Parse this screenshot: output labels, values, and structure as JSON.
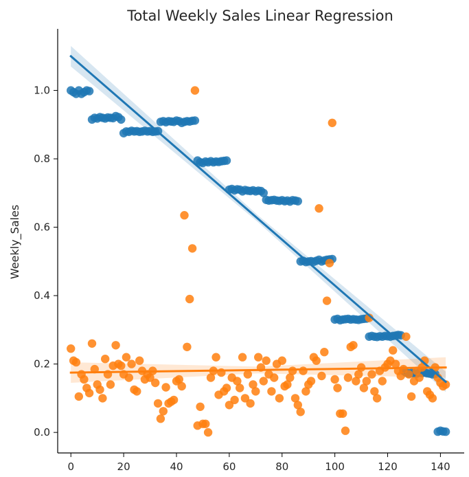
{
  "chart_data": {
    "type": "scatter",
    "title": "Total Weekly Sales Linear Regression",
    "xlabel": "",
    "ylabel": "Weekly_Sales",
    "xlim": [
      -5,
      149
    ],
    "ylim": [
      -0.06,
      1.18
    ],
    "xticks": [
      0,
      20,
      40,
      60,
      80,
      100,
      120,
      140
    ],
    "yticks": [
      0.0,
      0.2,
      0.4,
      0.6,
      0.8,
      1.0
    ],
    "ytick_labels": [
      "0.0",
      "0.2",
      "0.4",
      "0.6",
      "0.8",
      "1.0"
    ],
    "grid": false,
    "series": [
      {
        "color": "#1f77b4",
        "points": [
          [
            0,
            1.0
          ],
          [
            1,
            0.995
          ],
          [
            2,
            0.99
          ],
          [
            3,
            1.0
          ],
          [
            4,
            0.99
          ],
          [
            5,
            0.995
          ],
          [
            6,
            1.0
          ],
          [
            7,
            0.998
          ],
          [
            8,
            0.915
          ],
          [
            9,
            0.92
          ],
          [
            10,
            0.918
          ],
          [
            11,
            0.922
          ],
          [
            12,
            0.92
          ],
          [
            13,
            0.918
          ],
          [
            14,
            0.921
          ],
          [
            15,
            0.92
          ],
          [
            16,
            0.919
          ],
          [
            17,
            0.925
          ],
          [
            18,
            0.922
          ],
          [
            19,
            0.915
          ],
          [
            20,
            0.875
          ],
          [
            21,
            0.88
          ],
          [
            22,
            0.879
          ],
          [
            23,
            0.882
          ],
          [
            24,
            0.88
          ],
          [
            25,
            0.881
          ],
          [
            26,
            0.879
          ],
          [
            27,
            0.88
          ],
          [
            28,
            0.882
          ],
          [
            29,
            0.88
          ],
          [
            30,
            0.881
          ],
          [
            31,
            0.879
          ],
          [
            32,
            0.88
          ],
          [
            33,
            0.881
          ],
          [
            34,
            0.908
          ],
          [
            35,
            0.91
          ],
          [
            36,
            0.907
          ],
          [
            37,
            0.91
          ],
          [
            38,
            0.909
          ],
          [
            39,
            0.908
          ],
          [
            40,
            0.912
          ],
          [
            41,
            0.91
          ],
          [
            42,
            0.905
          ],
          [
            43,
            0.908
          ],
          [
            44,
            0.91
          ],
          [
            45,
            0.909
          ],
          [
            46,
            0.911
          ],
          [
            47,
            0.912
          ],
          [
            48,
            0.795
          ],
          [
            49,
            0.79
          ],
          [
            50,
            0.788
          ],
          [
            51,
            0.792
          ],
          [
            52,
            0.79
          ],
          [
            53,
            0.793
          ],
          [
            54,
            0.79
          ],
          [
            55,
            0.792
          ],
          [
            56,
            0.791
          ],
          [
            57,
            0.793
          ],
          [
            58,
            0.794
          ],
          [
            59,
            0.795
          ],
          [
            60,
            0.71
          ],
          [
            61,
            0.712
          ],
          [
            62,
            0.708
          ],
          [
            63,
            0.711
          ],
          [
            64,
            0.71
          ],
          [
            65,
            0.705
          ],
          [
            66,
            0.709
          ],
          [
            67,
            0.707
          ],
          [
            68,
            0.706
          ],
          [
            69,
            0.708
          ],
          [
            70,
            0.705
          ],
          [
            71,
            0.707
          ],
          [
            72,
            0.706
          ],
          [
            73,
            0.7
          ],
          [
            74,
            0.68
          ],
          [
            75,
            0.678
          ],
          [
            76,
            0.679
          ],
          [
            77,
            0.68
          ],
          [
            78,
            0.678
          ],
          [
            79,
            0.677
          ],
          [
            80,
            0.679
          ],
          [
            81,
            0.676
          ],
          [
            82,
            0.678
          ],
          [
            83,
            0.675
          ],
          [
            84,
            0.679
          ],
          [
            85,
            0.678
          ],
          [
            86,
            0.676
          ],
          [
            87,
            0.5
          ],
          [
            88,
            0.502
          ],
          [
            89,
            0.498
          ],
          [
            90,
            0.5
          ],
          [
            91,
            0.501
          ],
          [
            92,
            0.499
          ],
          [
            93,
            0.502
          ],
          [
            94,
            0.505
          ],
          [
            95,
            0.5
          ],
          [
            96,
            0.503
          ],
          [
            97,
            0.505
          ],
          [
            98,
            0.506
          ],
          [
            99,
            0.507
          ],
          [
            100,
            0.33
          ],
          [
            101,
            0.332
          ],
          [
            102,
            0.328
          ],
          [
            103,
            0.33
          ],
          [
            104,
            0.331
          ],
          [
            105,
            0.332
          ],
          [
            106,
            0.33
          ],
          [
            107,
            0.331
          ],
          [
            108,
            0.33
          ],
          [
            109,
            0.329
          ],
          [
            110,
            0.331
          ],
          [
            111,
            0.332
          ],
          [
            112,
            0.333
          ],
          [
            113,
            0.28
          ],
          [
            114,
            0.282
          ],
          [
            115,
            0.28
          ],
          [
            116,
            0.279
          ],
          [
            117,
            0.281
          ],
          [
            118,
            0.28
          ],
          [
            119,
            0.282
          ],
          [
            120,
            0.281
          ],
          [
            121,
            0.28
          ],
          [
            122,
            0.282
          ],
          [
            123,
            0.283
          ],
          [
            124,
            0.285
          ],
          [
            125,
            0.284
          ],
          [
            126,
            0.18
          ],
          [
            127,
            0.175
          ],
          [
            128,
            0.172
          ],
          [
            129,
            0.174
          ],
          [
            130,
            0.173
          ],
          [
            131,
            0.172
          ],
          [
            132,
            0.175
          ],
          [
            133,
            0.174
          ],
          [
            134,
            0.175
          ],
          [
            135,
            0.173
          ],
          [
            136,
            0.172
          ],
          [
            137,
            0.17
          ],
          [
            138,
            0.171
          ],
          [
            139,
            0.002
          ],
          [
            140,
            0.005
          ],
          [
            141,
            0.003
          ],
          [
            142,
            0.002
          ]
        ],
        "fit": [
          [
            0,
            1.1
          ],
          [
            142,
            0.148
          ]
        ],
        "ci_half_width": [
          0.03,
          0.01,
          0.03
        ]
      },
      {
        "color": "#ff7f0e",
        "points": [
          [
            0,
            0.245
          ],
          [
            1,
            0.21
          ],
          [
            2,
            0.205
          ],
          [
            3,
            0.105
          ],
          [
            4,
            0.17
          ],
          [
            5,
            0.155
          ],
          [
            6,
            0.13
          ],
          [
            7,
            0.115
          ],
          [
            8,
            0.26
          ],
          [
            9,
            0.185
          ],
          [
            10,
            0.14
          ],
          [
            11,
            0.125
          ],
          [
            12,
            0.1
          ],
          [
            13,
            0.215
          ],
          [
            14,
            0.17
          ],
          [
            15,
            0.14
          ],
          [
            16,
            0.195
          ],
          [
            17,
            0.255
          ],
          [
            18,
            0.2
          ],
          [
            19,
            0.195
          ],
          [
            20,
            0.17
          ],
          [
            21,
            0.22
          ],
          [
            22,
            0.16
          ],
          [
            23,
            0.2
          ],
          [
            24,
            0.125
          ],
          [
            25,
            0.12
          ],
          [
            26,
            0.21
          ],
          [
            27,
            0.18
          ],
          [
            28,
            0.155
          ],
          [
            29,
            0.17
          ],
          [
            30,
            0.16
          ],
          [
            31,
            0.18
          ],
          [
            32,
            0.145
          ],
          [
            33,
            0.085
          ],
          [
            34,
            0.04
          ],
          [
            35,
            0.062
          ],
          [
            36,
            0.132
          ],
          [
            37,
            0.085
          ],
          [
            38,
            0.09
          ],
          [
            39,
            0.095
          ],
          [
            40,
            0.15
          ],
          [
            41,
            0.155
          ],
          [
            42,
            0.135
          ],
          [
            43,
            0.635
          ],
          [
            44,
            0.25
          ],
          [
            45,
            0.39
          ],
          [
            46,
            0.538
          ],
          [
            47,
            1.0
          ],
          [
            48,
            0.02
          ],
          [
            49,
            0.075
          ],
          [
            50,
            0.025
          ],
          [
            51,
            0.025
          ],
          [
            52,
            0.0
          ],
          [
            53,
            0.16
          ],
          [
            54,
            0.18
          ],
          [
            55,
            0.22
          ],
          [
            56,
            0.11
          ],
          [
            57,
            0.175
          ],
          [
            58,
            0.12
          ],
          [
            59,
            0.13
          ],
          [
            60,
            0.08
          ],
          [
            61,
            0.16
          ],
          [
            62,
            0.095
          ],
          [
            63,
            0.15
          ],
          [
            64,
            0.13
          ],
          [
            65,
            0.22
          ],
          [
            66,
            0.1
          ],
          [
            67,
            0.17
          ],
          [
            68,
            0.085
          ],
          [
            69,
            0.14
          ],
          [
            70,
            0.12
          ],
          [
            71,
            0.22
          ],
          [
            72,
            0.19
          ],
          [
            73,
            0.15
          ],
          [
            74,
            0.21
          ],
          [
            75,
            0.17
          ],
          [
            76,
            0.12
          ],
          [
            77,
            0.16
          ],
          [
            78,
            0.2
          ],
          [
            79,
            0.1
          ],
          [
            80,
            0.21
          ],
          [
            81,
            0.135
          ],
          [
            82,
            0.14
          ],
          [
            83,
            0.16
          ],
          [
            84,
            0.18
          ],
          [
            85,
            0.1
          ],
          [
            86,
            0.08
          ],
          [
            87,
            0.06
          ],
          [
            88,
            0.18
          ],
          [
            89,
            0.12
          ],
          [
            90,
            0.14
          ],
          [
            91,
            0.15
          ],
          [
            92,
            0.22
          ],
          [
            93,
            0.21
          ],
          [
            94,
            0.655
          ],
          [
            95,
            0.165
          ],
          [
            96,
            0.235
          ],
          [
            97,
            0.385
          ],
          [
            98,
            0.495
          ],
          [
            99,
            0.905
          ],
          [
            100,
            0.155
          ],
          [
            101,
            0.13
          ],
          [
            102,
            0.055
          ],
          [
            103,
            0.055
          ],
          [
            104,
            0.005
          ],
          [
            105,
            0.16
          ],
          [
            106,
            0.25
          ],
          [
            107,
            0.255
          ],
          [
            108,
            0.15
          ],
          [
            109,
            0.17
          ],
          [
            110,
            0.19
          ],
          [
            111,
            0.13
          ],
          [
            112,
            0.15
          ],
          [
            113,
            0.335
          ],
          [
            114,
            0.17
          ],
          [
            115,
            0.12
          ],
          [
            116,
            0.1
          ],
          [
            117,
            0.18
          ],
          [
            118,
            0.15
          ],
          [
            119,
            0.19
          ],
          [
            120,
            0.2
          ],
          [
            121,
            0.21
          ],
          [
            122,
            0.24
          ],
          [
            123,
            0.2
          ],
          [
            124,
            0.18
          ],
          [
            125,
            0.165
          ],
          [
            126,
            0.185
          ],
          [
            127,
            0.28
          ],
          [
            128,
            0.17
          ],
          [
            129,
            0.105
          ],
          [
            130,
            0.15
          ],
          [
            131,
            0.18
          ],
          [
            132,
            0.16
          ],
          [
            133,
            0.19
          ],
          [
            134,
            0.21
          ],
          [
            135,
            0.12
          ],
          [
            136,
            0.11
          ],
          [
            137,
            0.1
          ],
          [
            138,
            0.19
          ],
          [
            139,
            0.16
          ],
          [
            140,
            0.145
          ],
          [
            141,
            0.135
          ],
          [
            142,
            0.14
          ]
        ],
        "fit": [
          [
            0,
            0.175
          ],
          [
            142,
            0.19
          ]
        ],
        "ci_half_width": [
          0.03,
          0.01,
          0.03
        ]
      }
    ]
  }
}
